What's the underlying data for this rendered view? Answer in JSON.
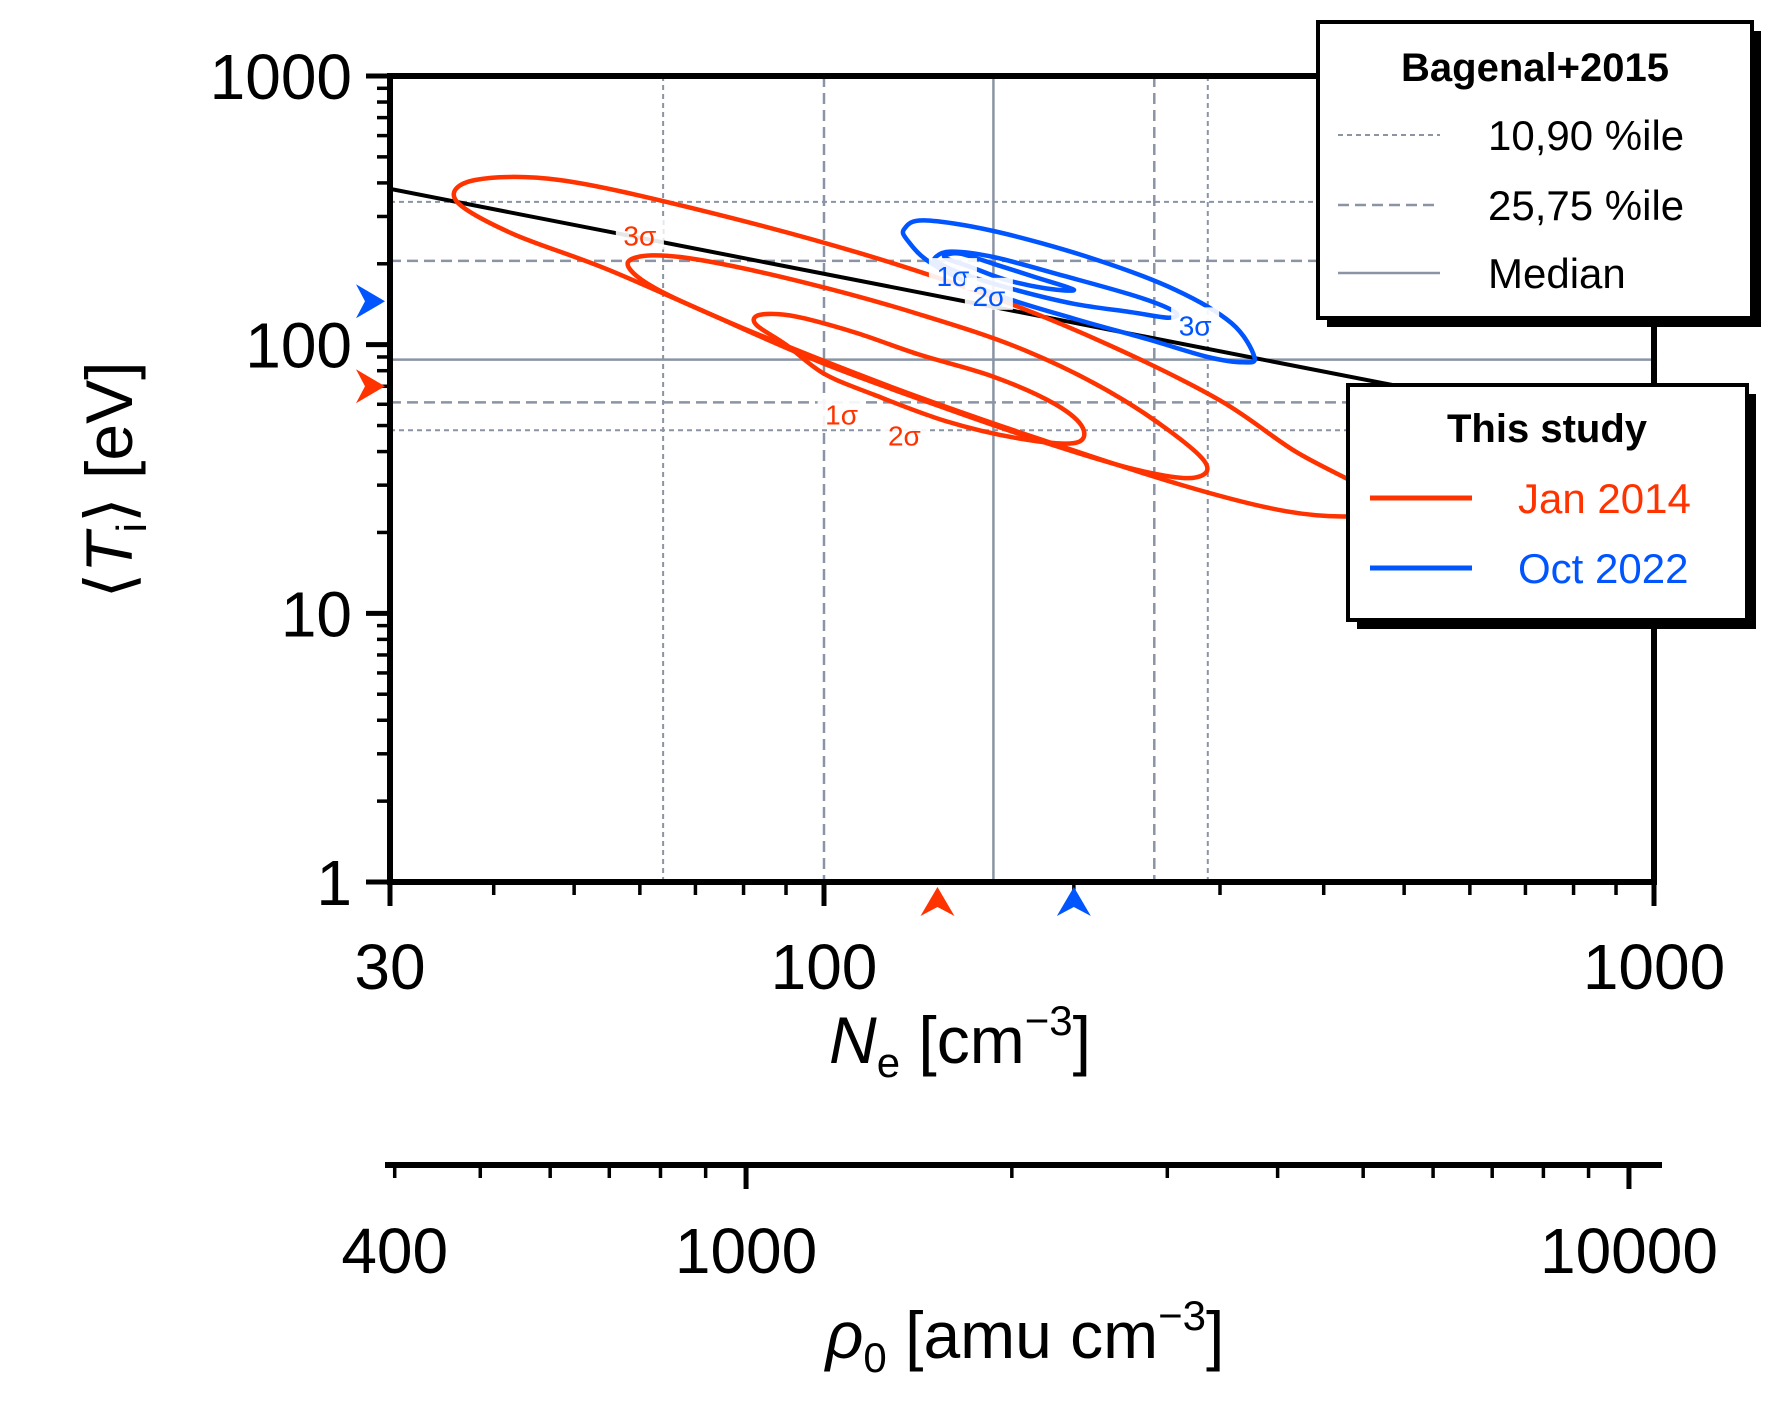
{
  "chart_data": {
    "type": "contour",
    "x_axis": {
      "label_main": "N",
      "label_sub": "e",
      "label_unit_open": " [cm",
      "label_sup": "−3",
      "label_unit_close": "]",
      "scale": "log",
      "range": [
        30,
        1000
      ],
      "ticks": [
        30,
        100,
        1000
      ],
      "tick_labels": [
        "30",
        "100",
        "1000"
      ]
    },
    "secondary_x_axis": {
      "label_main": "ρ",
      "label_sub": "0",
      "label_unit_open": " [amu cm",
      "label_sup": "−3",
      "label_unit_close": "]",
      "scale": "log",
      "range": [
        390,
        10900
      ],
      "ticks": [
        400,
        1000,
        10000
      ],
      "tick_labels": [
        "400",
        "1000",
        "10000"
      ]
    },
    "y_axis": {
      "label_open": "⟨",
      "label_main": "T",
      "label_sub": "i",
      "label_close": "⟩",
      "label_unit": " [eV]",
      "scale": "log",
      "range": [
        1,
        1000
      ],
      "ticks": [
        1,
        10,
        100,
        1000
      ],
      "tick_labels": [
        "1",
        "10",
        "100",
        "1000"
      ]
    },
    "reference": {
      "legend_title": "Bagenal+2015",
      "percentile_10_90": {
        "label": "10,90 %ile",
        "x": [
          64,
          290
        ],
        "y": [
          48,
          340
        ]
      },
      "percentile_25_75": {
        "label": "25,75 %ile",
        "x": [
          100,
          250
        ],
        "y": [
          61,
          205
        ]
      },
      "median": {
        "label": "Median",
        "x": 160,
        "y": 88
      },
      "trend_line": {
        "x": [
          30,
          860
        ],
        "y": [
          380,
          50
        ]
      },
      "color": "#8a94a4"
    },
    "series": [
      {
        "name": "Jan 2014",
        "color": "#ff3300",
        "marker": {
          "x": 137,
          "y": 70
        },
        "contours": [
          {
            "label": "1σ",
            "label_at": [
              105,
              55
            ],
            "points": [
              [
                83,
                128
              ],
              [
                88,
                130
              ],
              [
                95,
                125
              ],
              [
                110,
                110
              ],
              [
                130,
                92
              ],
              [
                160,
                76
              ],
              [
                190,
                60
              ],
              [
                205,
                49
              ],
              [
                200,
                43
              ],
              [
                170,
                45
              ],
              [
                140,
                52
              ],
              [
                115,
                65
              ],
              [
                100,
                78
              ],
              [
                90,
                100
              ],
              [
                83,
                118
              ]
            ]
          },
          {
            "label": "2σ",
            "label_at": [
              125,
              46
            ],
            "points": [
              [
                58,
                200
              ],
              [
                62,
                215
              ],
              [
                72,
                205
              ],
              [
                95,
                170
              ],
              [
                130,
                130
              ],
              [
                175,
                95
              ],
              [
                230,
                62
              ],
              [
                285,
                38
              ],
              [
                280,
                32
              ],
              [
                240,
                34
              ],
              [
                190,
                42
              ],
              [
                140,
                58
              ],
              [
                100,
                85
              ],
              [
                75,
                125
              ],
              [
                62,
                165
              ]
            ]
          },
          {
            "label": "3σ",
            "label_at": [
              60,
              255
            ],
            "points": [
              [
                36,
                345
              ],
              [
                38,
                410
              ],
              [
                48,
                410
              ],
              [
                70,
                320
              ],
              [
                110,
                220
              ],
              [
                160,
                150
              ],
              [
                220,
                100
              ],
              [
                300,
                62
              ],
              [
                370,
                40
              ],
              [
                450,
                29
              ],
              [
                470,
                25
              ],
              [
                440,
                23
              ],
              [
                360,
                24
              ],
              [
                270,
                30
              ],
              [
                180,
                45
              ],
              [
                120,
                70
              ],
              [
                80,
                115
              ],
              [
                55,
                190
              ],
              [
                42,
                260
              ]
            ]
          }
        ]
      },
      {
        "name": "Oct 2022",
        "color": "#0055ff",
        "marker": {
          "x": 200,
          "y": 145
        },
        "contours": [
          {
            "label": "1σ",
            "label_at": [
              143,
              180
            ],
            "points": [
              [
                140,
                215
              ],
              [
                146,
                218
              ],
              [
                160,
                200
              ],
              [
                180,
                178
              ],
              [
                200,
                160
              ],
              [
                185,
                162
              ],
              [
                165,
                175
              ],
              [
                150,
                195
              ],
              [
                141,
                208
              ]
            ]
          },
          {
            "label": "2σ",
            "label_at": [
              158,
              152
            ],
            "points": [
              [
                136,
                210
              ],
              [
                142,
                222
              ],
              [
                160,
                212
              ],
              [
                195,
                180
              ],
              [
                240,
                150
              ],
              [
                265,
                132
              ],
              [
                260,
                126
              ],
              [
                235,
                132
              ],
              [
                200,
                142
              ],
              [
                170,
                160
              ],
              [
                148,
                182
              ],
              [
                138,
                200
              ]
            ]
          },
          {
            "label": "3σ",
            "label_at": [
              280,
              118
            ],
            "points": [
              [
                125,
                270
              ],
              [
                132,
                290
              ],
              [
                160,
                265
              ],
              [
                210,
                210
              ],
              [
                265,
                160
              ],
              [
                310,
                120
              ],
              [
                330,
                90
              ],
              [
                320,
                86
              ],
              [
                290,
                90
              ],
              [
                245,
                105
              ],
              [
                200,
                125
              ],
              [
                160,
                155
              ],
              [
                135,
                200
              ],
              [
                126,
                245
              ]
            ]
          }
        ]
      }
    ],
    "legend_this_study_title": "This study"
  }
}
